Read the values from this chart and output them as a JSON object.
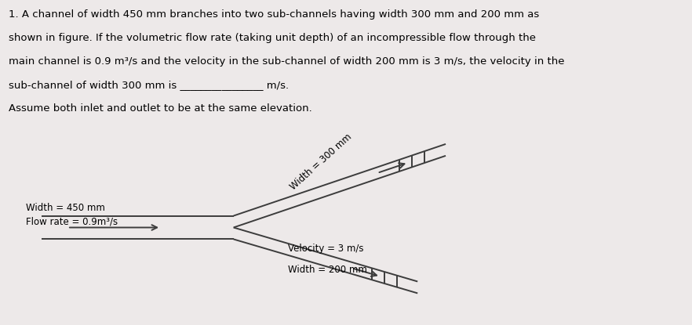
{
  "background_color": "#ede9e9",
  "text_color": "#000000",
  "title_lines": [
    "1. A channel of width 450 mm branches into two sub-channels having width 300 mm and 200 mm as",
    "shown in figure. If the volumetric flow rate (taking unit depth) of an incompressible flow through the",
    "main channel is 0.9 m³/s and the velocity in the sub-channel of width 200 mm is 3 m/s, the velocity in the",
    "sub-channel of width 300 mm is ________________ m/s.",
    "Assume both inlet and outlet to be at the same elevation."
  ],
  "label_300": "Width = 300 mm",
  "label_450": "Width = 450 mm",
  "label_flowrate": "Flow rate = 0.9m³/s",
  "label_200": "Width = 200 mm",
  "label_velocity": "Velocity = 3 m/s",
  "line_color": "#3c3c3c",
  "font_size_text": 9.5,
  "font_size_label": 8.5
}
